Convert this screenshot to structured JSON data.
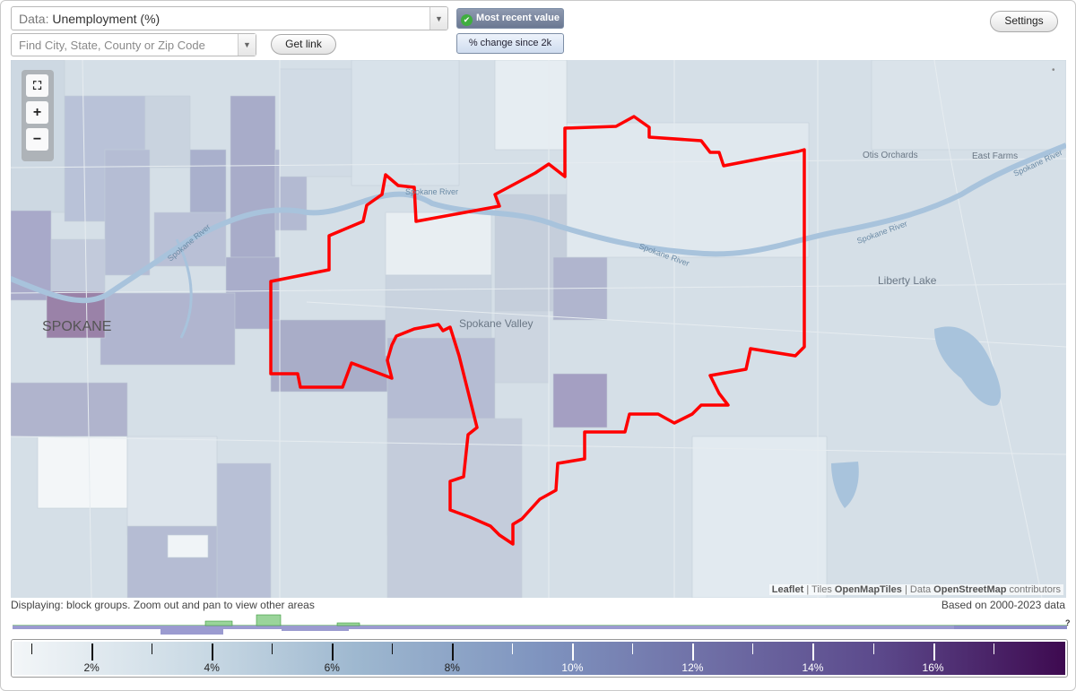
{
  "controls": {
    "data_select_label": "Data:",
    "data_select_value": "Unemployment (%)",
    "find_placeholder": "Find City, State, County or Zip Code",
    "get_link_label": "Get link",
    "toggle_recent_label": "Most recent value",
    "toggle_change_label": "% change since 2k",
    "settings_label": "Settings"
  },
  "map": {
    "labels": {
      "spokane": "SPOKANE",
      "spokane_valley": "Spokane Valley",
      "liberty_lake": "Liberty Lake",
      "otis_orchards": "Otis Orchards",
      "east_farms": "East Farms",
      "spokane_river_1": "Spokane River",
      "spokane_river_2": "Spokane River",
      "spokane_river_3": "Spokane River",
      "spokane_river_4": "Spokane River",
      "spokane_river_5": "Spokane River"
    },
    "attribution": {
      "leaflet": "Leaflet",
      "sep1": " | Tiles ",
      "tiles": "OpenMapTiles",
      "sep2": " | Data ",
      "data": "OpenStreetMap",
      "contrib": " contributors"
    },
    "highlight_color": "#ff0000"
  },
  "zoom": {
    "fit_icon": "fit-bounds-icon",
    "in_label": "+",
    "out_label": "−"
  },
  "status": {
    "displaying": "Displaying: block groups. Zoom out and pan to view other areas",
    "based_on": "Based on 2000-2023 data",
    "help": "?"
  },
  "legend": {
    "min": 0.7,
    "max": 18.2,
    "labels": [
      "2%",
      "4%",
      "6%",
      "8%",
      "10%",
      "12%",
      "14%",
      "16%"
    ],
    "label_values": [
      2,
      4,
      6,
      8,
      10,
      12,
      14,
      16
    ]
  }
}
